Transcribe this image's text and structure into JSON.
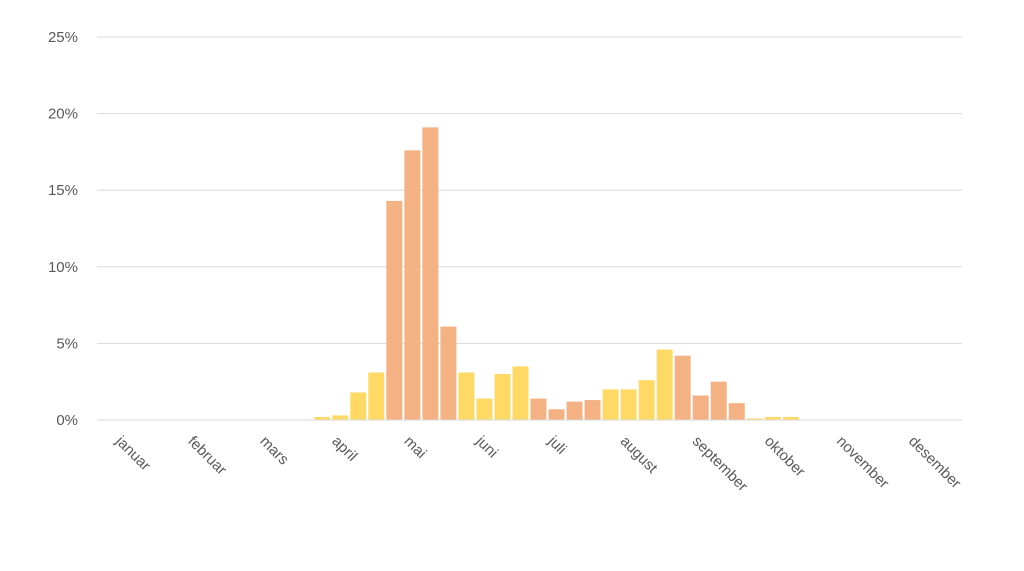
{
  "chart_data": {
    "type": "bar",
    "title": "",
    "xlabel": "",
    "ylabel": "",
    "ylim": [
      0,
      25
    ],
    "y_ticks": [
      "0%",
      "5%",
      "10%",
      "15%",
      "20%",
      "25%"
    ],
    "y_tick_values": [
      0,
      5,
      10,
      15,
      20,
      25
    ],
    "grid": "horizontal",
    "legend": "none",
    "month_labels": [
      "januar",
      "februar",
      "mars",
      "april",
      "mai",
      "juni",
      "juli",
      "august",
      "september",
      "oktober",
      "november",
      "desember"
    ],
    "bars_per_month": 4,
    "values": [
      0,
      0,
      0,
      0,
      0,
      0,
      0,
      0,
      0,
      0,
      0,
      0,
      0.2,
      0.3,
      1.8,
      3.1,
      14.3,
      17.6,
      19.1,
      6.1,
      3.1,
      1.4,
      3.0,
      3.5,
      1.4,
      0.7,
      1.2,
      1.3,
      2.0,
      2.0,
      2.6,
      4.6,
      4.2,
      1.6,
      2.5,
      1.1,
      0.1,
      0.2,
      0.2,
      0,
      0,
      0,
      0,
      0,
      0,
      0,
      0,
      0
    ],
    "colors": {
      "yellow": "#ffd966",
      "orange": "#f4b183",
      "grid": "#d9d9d9",
      "axis": "#d9d9d9",
      "text": "#595959"
    },
    "bar_colors": [
      "yellow",
      "yellow",
      "yellow",
      "yellow",
      "yellow",
      "yellow",
      "yellow",
      "yellow",
      "yellow",
      "yellow",
      "yellow",
      "yellow",
      "yellow",
      "yellow",
      "yellow",
      "yellow",
      "orange",
      "orange",
      "orange",
      "orange",
      "yellow",
      "yellow",
      "yellow",
      "yellow",
      "orange",
      "orange",
      "orange",
      "orange",
      "yellow",
      "yellow",
      "yellow",
      "yellow",
      "orange",
      "orange",
      "orange",
      "orange",
      "yellow",
      "yellow",
      "yellow",
      "yellow",
      "yellow",
      "yellow",
      "yellow",
      "yellow",
      "yellow",
      "yellow",
      "yellow",
      "yellow"
    ]
  }
}
